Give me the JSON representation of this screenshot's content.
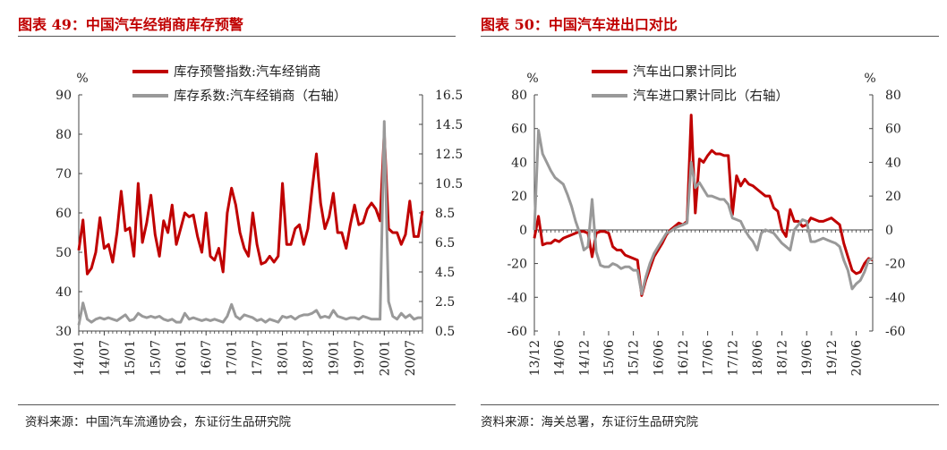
{
  "left": {
    "title": "图表 49：中国汽车经销商库存预警",
    "source": "资料来源：中国汽车流通协会，东证衍生品研究院",
    "chart_data": {
      "type": "line",
      "unit_left": "%",
      "ylim_left": [
        30,
        90
      ],
      "yticks_left": [
        "30",
        "40",
        "50",
        "60",
        "70",
        "80",
        "90"
      ],
      "ylim_right": [
        0.5,
        16.5
      ],
      "yticks_right": [
        "0.5",
        "2.5",
        "4.5",
        "6.5",
        "8.5",
        "10.5",
        "12.5",
        "14.5",
        "16.5"
      ],
      "x_tick_labels": [
        "14/01",
        "14/07",
        "15/01",
        "15/07",
        "16/01",
        "16/07",
        "17/01",
        "17/07",
        "18/01",
        "18/07",
        "19/01",
        "19/07",
        "20/01",
        "20/07"
      ],
      "x_tick_months": [
        0,
        6,
        12,
        18,
        24,
        30,
        36,
        42,
        48,
        54,
        60,
        66,
        72,
        78
      ],
      "x_range": [
        0,
        81
      ],
      "series": [
        {
          "name": "库存预警指数:汽车经销商",
          "axis": "left",
          "color": "#c00000",
          "x": [
            0,
            1,
            2,
            3,
            4,
            5,
            6,
            7,
            8,
            9,
            10,
            11,
            12,
            13,
            14,
            15,
            16,
            17,
            18,
            19,
            20,
            21,
            22,
            23,
            24,
            25,
            26,
            27,
            28,
            29,
            30,
            31,
            32,
            33,
            34,
            35,
            36,
            37,
            38,
            39,
            40,
            41,
            42,
            43,
            44,
            45,
            46,
            47,
            48,
            49,
            50,
            51,
            52,
            53,
            54,
            55,
            56,
            57,
            58,
            59,
            60,
            61,
            62,
            63,
            64,
            65,
            66,
            67,
            68,
            69,
            70,
            71,
            72,
            73,
            74,
            75,
            76,
            77,
            78,
            79,
            80,
            81
          ],
          "values": [
            50.5,
            58.2,
            44.5,
            46.0,
            50.0,
            58.8,
            51.0,
            52.0,
            47.5,
            55.0,
            65.5,
            55.5,
            56.2,
            49.0,
            67.5,
            52.5,
            57.5,
            64.5,
            54.5,
            49.0,
            58.0,
            55.0,
            62.0,
            52.0,
            56.0,
            60.0,
            59.0,
            59.5,
            54.0,
            50.0,
            60.0,
            49.0,
            48.0,
            51.0,
            45.0,
            60.0,
            66.3,
            62.0,
            55.0,
            51.0,
            49.0,
            60.0,
            52.0,
            47.0,
            47.5,
            49.0,
            47.5,
            49.0,
            67.5,
            52.0,
            52.0,
            56.0,
            57.0,
            52.0,
            56.0,
            66.0,
            75.0,
            62.5,
            56.0,
            59.0,
            65.0,
            55.0,
            55.0,
            51.0,
            57.0,
            62.0,
            57.0,
            57.5,
            61.0,
            62.5,
            61.0,
            58.0,
            80.5,
            56.0,
            55.0,
            55.0,
            52.0,
            54.5,
            63.0,
            54.0,
            54.0,
            60.5
          ]
        },
        {
          "name": "库存系数:汽车经销商（右轴）",
          "axis": "right",
          "color": "#999999",
          "x": [
            0,
            1,
            2,
            3,
            4,
            5,
            6,
            7,
            8,
            9,
            10,
            11,
            12,
            13,
            14,
            15,
            16,
            17,
            18,
            19,
            20,
            21,
            22,
            23,
            24,
            25,
            26,
            27,
            28,
            29,
            30,
            31,
            32,
            33,
            34,
            35,
            36,
            37,
            38,
            39,
            40,
            41,
            42,
            43,
            44,
            45,
            46,
            47,
            48,
            49,
            50,
            51,
            52,
            53,
            54,
            55,
            56,
            57,
            58,
            59,
            60,
            61,
            62,
            63,
            64,
            65,
            66,
            67,
            68,
            69,
            70,
            71,
            72,
            73,
            74,
            75,
            76,
            77,
            78,
            79,
            80,
            81
          ],
          "values": [
            0.9,
            2.4,
            1.3,
            1.1,
            1.3,
            1.4,
            1.3,
            1.4,
            1.3,
            1.2,
            1.4,
            1.6,
            1.2,
            1.3,
            1.7,
            1.5,
            1.4,
            1.5,
            1.4,
            1.5,
            1.3,
            1.2,
            1.3,
            1.1,
            1.1,
            1.7,
            1.3,
            1.4,
            1.3,
            1.2,
            1.3,
            1.2,
            1.3,
            1.2,
            1.1,
            1.5,
            2.3,
            1.5,
            1.3,
            1.6,
            1.5,
            1.4,
            1.2,
            1.3,
            1.1,
            1.3,
            1.2,
            1.1,
            1.5,
            1.4,
            1.5,
            1.3,
            1.5,
            1.6,
            1.6,
            1.7,
            1.9,
            1.4,
            1.5,
            1.4,
            1.9,
            1.5,
            1.4,
            1.3,
            1.4,
            1.4,
            1.3,
            1.5,
            1.4,
            1.3,
            1.3,
            1.3,
            14.7,
            2.5,
            1.5,
            1.3,
            1.7,
            1.4,
            1.6,
            1.3,
            1.4,
            1.4
          ]
        }
      ]
    }
  },
  "right": {
    "title": "图表 50：中国汽车进出口对比",
    "source": "资料来源：海关总署，东证衍生品研究院",
    "chart_data": {
      "type": "line",
      "unit_left": "%",
      "unit_right": "%",
      "ylim": [
        -60,
        80
      ],
      "yticks": [
        "-60",
        "-40",
        "-20",
        "0",
        "20",
        "40",
        "60",
        "80"
      ],
      "x_tick_labels": [
        "13/12",
        "14/06",
        "14/12",
        "15/06",
        "15/12",
        "16/06",
        "16/12",
        "17/06",
        "17/12",
        "18/06",
        "18/12",
        "19/06",
        "19/12",
        "20/06"
      ],
      "x_tick_months": [
        0,
        6,
        12,
        18,
        24,
        30,
        36,
        42,
        48,
        54,
        60,
        66,
        72,
        78
      ],
      "x_range": [
        0,
        82
      ],
      "series": [
        {
          "name": "汽车出口累计同比",
          "axis": "left",
          "color": "#c00000",
          "x": [
            0,
            1,
            2,
            3,
            4,
            5,
            6,
            7,
            8,
            9,
            10,
            11,
            12,
            13,
            14,
            15,
            16,
            17,
            18,
            19,
            20,
            21,
            22,
            23,
            24,
            25,
            26,
            27,
            28,
            29,
            30,
            31,
            32,
            33,
            34,
            35,
            36,
            37,
            38,
            39,
            40,
            41,
            42,
            43,
            44,
            45,
            46,
            47,
            48,
            49,
            50,
            51,
            52,
            53,
            54,
            55,
            56,
            57,
            58,
            59,
            60,
            61,
            62,
            63,
            64,
            65,
            66,
            67,
            68,
            69,
            70,
            71,
            72,
            73,
            74,
            75,
            76,
            77,
            78,
            79,
            80,
            81,
            82
          ],
          "values": [
            -5,
            8,
            -9,
            -8,
            -8,
            -6,
            -7,
            -5,
            -4,
            -3,
            -2,
            -1,
            -1,
            -2,
            -16,
            -2,
            -1,
            -1,
            -2,
            -10,
            -12,
            -12,
            -15,
            -16,
            -17,
            -18,
            -39,
            -30,
            -23,
            -16,
            -12,
            -8,
            -3,
            0,
            2,
            4,
            3,
            5,
            68,
            10,
            42,
            40,
            44,
            47,
            45,
            45,
            44,
            44,
            9,
            32,
            26,
            30,
            27,
            26,
            24,
            22,
            20,
            20,
            13,
            11,
            0,
            -4,
            12,
            5,
            5,
            2,
            3,
            7,
            6,
            5,
            5,
            6,
            7,
            5,
            3,
            -8,
            -16,
            -24,
            -26,
            -25,
            -20,
            -17,
            -18
          ]
        },
        {
          "name": "汽车进口累计同比（右轴）",
          "axis": "right",
          "color": "#999999",
          "x": [
            0,
            1,
            2,
            3,
            4,
            5,
            6,
            7,
            8,
            9,
            10,
            11,
            12,
            13,
            14,
            15,
            16,
            17,
            18,
            19,
            20,
            21,
            22,
            23,
            24,
            25,
            26,
            27,
            28,
            29,
            30,
            31,
            32,
            33,
            34,
            35,
            36,
            37,
            38,
            39,
            40,
            41,
            42,
            43,
            44,
            45,
            46,
            47,
            48,
            49,
            50,
            51,
            52,
            53,
            54,
            55,
            56,
            57,
            58,
            59,
            60,
            61,
            62,
            63,
            64,
            65,
            66,
            67,
            68,
            69,
            70,
            71,
            72,
            73,
            74,
            75,
            76,
            77,
            78,
            79,
            80,
            81,
            82
          ],
          "values": [
            0,
            59,
            45,
            40,
            35,
            31,
            29,
            27,
            21,
            14,
            5,
            -2,
            -12,
            -10,
            18,
            -13,
            -21,
            -22,
            -22,
            -20,
            -21,
            -23,
            -22,
            -22,
            -24,
            -24,
            -38,
            -28,
            -20,
            -14,
            -10,
            -6,
            -2,
            -1,
            1,
            2,
            3,
            4,
            40,
            25,
            28,
            24,
            20,
            20,
            19,
            18,
            18,
            15,
            7,
            6,
            5,
            0,
            -4,
            -7,
            -12,
            -2,
            0,
            -1,
            -2,
            -5,
            -8,
            -10,
            -12,
            0,
            3,
            6,
            5,
            -7,
            -7,
            -6,
            -5,
            -6,
            -7,
            -8,
            -10,
            -18,
            -24,
            -35,
            -32,
            -30,
            -25,
            -18,
            -17
          ]
        }
      ]
    }
  }
}
